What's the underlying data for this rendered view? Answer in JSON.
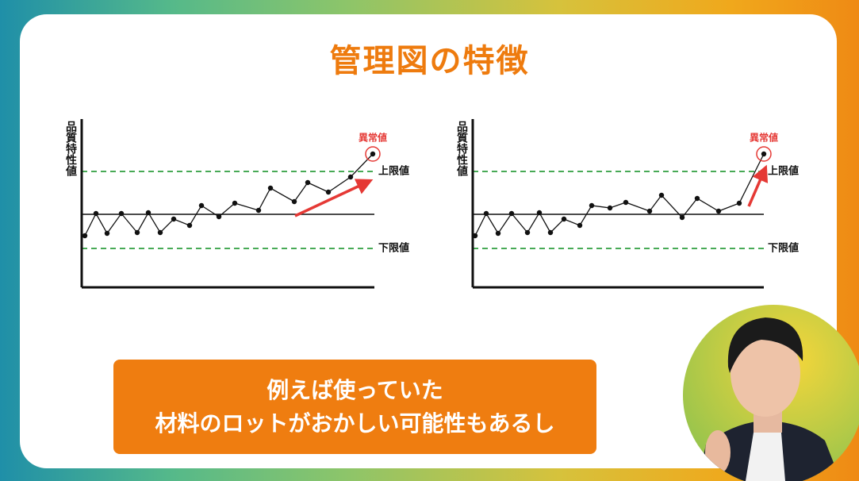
{
  "title": "管理図の特徴",
  "chart_data": [
    {
      "type": "line",
      "y_label": "品質特性値",
      "color": "#111111",
      "limit_color": "#2e9e3e",
      "highlight_color": "#e53935",
      "x": [
        0.4,
        1.8,
        3.2,
        5,
        7,
        8.4,
        9.9,
        11.6,
        13.6,
        15.1,
        17.3,
        19.3,
        22.3,
        23.8,
        26.8,
        28.5,
        31.1,
        33.9,
        36.7
      ],
      "values": [
        -2.7,
        0.1,
        -2.4,
        0.1,
        -2.3,
        0.2,
        -2.3,
        -0.6,
        -1.4,
        1.1,
        -0.3,
        1.4,
        0.5,
        3.3,
        1.6,
        4,
        2.8,
        4.7,
        7.6
      ],
      "xlim": [
        0,
        36.9
      ],
      "ylim": [
        -9.2,
        12
      ],
      "center_line": 0,
      "upper_limit": 5.4,
      "upper_limit_label": "上限値",
      "lower_limit": -4.3,
      "lower_limit_label": "下限値",
      "outlier_label": "異常値"
    },
    {
      "type": "line",
      "y_label": "品質特性値",
      "color": "#111111",
      "limit_color": "#2e9e3e",
      "highlight_color": "#e53935",
      "x": [
        0.3,
        1.7,
        3.2,
        4.9,
        6.9,
        8.4,
        9.8,
        11.5,
        13.5,
        15,
        17.3,
        19.3,
        22.3,
        23.8,
        26.4,
        28.3,
        31,
        33.6,
        36.7
      ],
      "values": [
        -2.7,
        0.1,
        -2.4,
        0.1,
        -2.3,
        0.2,
        -2.3,
        -0.6,
        -1.4,
        1.1,
        0.8,
        1.5,
        0.4,
        2.4,
        -0.4,
        2,
        0.4,
        1.4,
        7.6
      ],
      "xlim": [
        0,
        36.7
      ],
      "ylim": [
        -9.2,
        12
      ],
      "center_line": 0,
      "upper_limit": 5.4,
      "upper_limit_label": "上限値",
      "lower_limit": -4.3,
      "lower_limit_label": "下限値",
      "outlier_label": "異常値"
    }
  ],
  "caption": [
    "例えば使っていた",
    "材料のロットがおかしい可能性もあるし"
  ]
}
